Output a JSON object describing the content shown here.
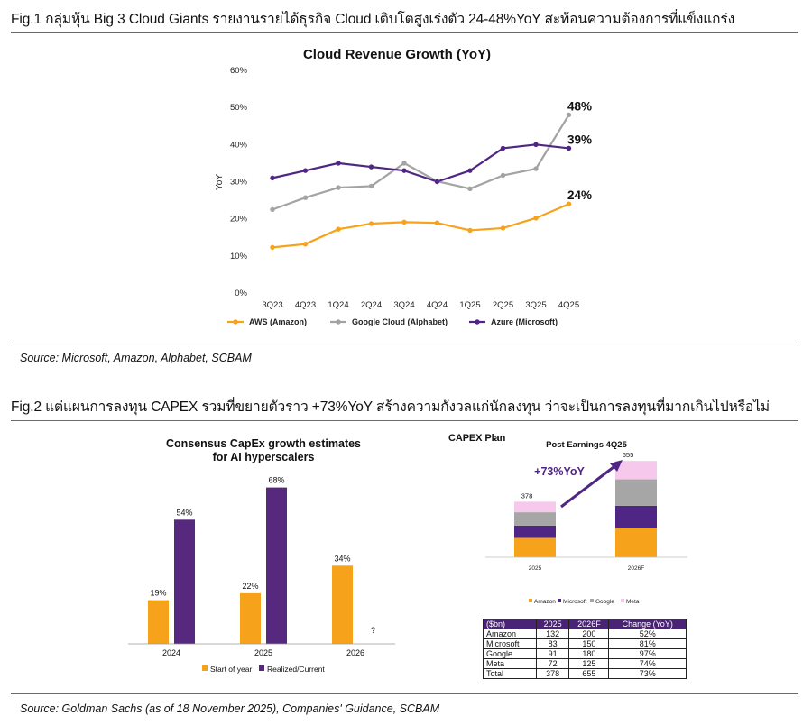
{
  "fig1": {
    "title": "Fig.1 กลุ่มหุ้น Big 3 Cloud Giants รายงานรายได้ธุรกิจ Cloud เติบโตสูงเร่งตัว 24-48%YoY สะท้อนความต้องการที่แข็งแกร่ง",
    "source": "Source: Microsoft, Amazon, Alphabet, SCBAM"
  },
  "fig2": {
    "title": "Fig.2 แต่แผนการลงทุน CAPEX รวมที่ขยายตัวราว +73%YoY สร้างความกังวลแก่นักลงทุน ว่าจะเป็นการลงทุนที่มากเกินไปหรือไม่",
    "source": "Source: Goldman Sachs (as of 18 November 2025), Companies' Guidance, SCBAM",
    "capex_plan_label": "CAPEX Plan"
  },
  "chart_data": [
    {
      "id": "cloud",
      "type": "line",
      "title": "Cloud Revenue Growth (YoY)",
      "xlabel": "",
      "ylabel": "YoY",
      "ylim": [
        0,
        60
      ],
      "yticks": [
        "0%",
        "10%",
        "20%",
        "30%",
        "40%",
        "50%",
        "60%"
      ],
      "categories": [
        "3Q23",
        "4Q23",
        "1Q24",
        "2Q24",
        "3Q24",
        "4Q24",
        "1Q25",
        "2Q25",
        "3Q25",
        "4Q25"
      ],
      "series": [
        {
          "name": "AWS (Amazon)",
          "color": "#f7a21b",
          "values": [
            12.3,
            13.2,
            17.2,
            18.7,
            19.1,
            18.9,
            16.9,
            17.5,
            20.2,
            24.0
          ],
          "end_label": "24%"
        },
        {
          "name": "Google Cloud (Alphabet)",
          "color": "#a3a3a3",
          "values": [
            22.5,
            25.7,
            28.4,
            28.8,
            35.0,
            30.1,
            28.1,
            31.7,
            33.5,
            48.0
          ],
          "end_label": "48%"
        },
        {
          "name": "Azure (Microsoft)",
          "color": "#4f2683",
          "values": [
            31.0,
            33.0,
            35.0,
            34.0,
            33.0,
            30.0,
            33.0,
            39.0,
            40.0,
            39.0
          ],
          "end_label": "39%"
        }
      ]
    },
    {
      "id": "consensus",
      "type": "bar",
      "title": [
        "Consensus CapEx growth estimates",
        "for AI hyperscalers"
      ],
      "categories": [
        "2024",
        "2025",
        "2026"
      ],
      "ylim": [
        0,
        80
      ],
      "series": [
        {
          "name": "Start of year",
          "color": "#f7a21b",
          "values": [
            19,
            22,
            34
          ],
          "labels": [
            "19%",
            "22%",
            "34%"
          ]
        },
        {
          "name": "Realized/Current",
          "color": "#56297e",
          "values": [
            54,
            68,
            null
          ],
          "labels": [
            "54%",
            "68%",
            "?"
          ]
        }
      ]
    },
    {
      "id": "capex",
      "type": "bar",
      "stacked": true,
      "title": "Post Earnings 4Q25",
      "categories": [
        "2025",
        "2026F"
      ],
      "totals": [
        "378",
        "655"
      ],
      "ylim": [
        0,
        700
      ],
      "growth_label": "+73%YoY",
      "series": [
        {
          "name": "Amazon",
          "color": "#f7a21b",
          "values": [
            132,
            200
          ]
        },
        {
          "name": "Microsoft",
          "color": "#4f2683",
          "values": [
            83,
            150
          ]
        },
        {
          "name": "Google",
          "color": "#a6a6a6",
          "values": [
            91,
            180
          ]
        },
        {
          "name": "Meta",
          "color": "#f5c8ec",
          "values": [
            72,
            125
          ]
        }
      ]
    },
    {
      "id": "capex_table",
      "type": "table",
      "columns": [
        "($bn)",
        "2025",
        "2026F",
        "Change (YoY)"
      ],
      "rows": [
        [
          "Amazon",
          "132",
          "200",
          "52%"
        ],
        [
          "Microsoft",
          "83",
          "150",
          "81%"
        ],
        [
          "Google",
          "91",
          "180",
          "97%"
        ],
        [
          "Meta",
          "72",
          "125",
          "74%"
        ],
        [
          "Total",
          "378",
          "655",
          "73%"
        ]
      ]
    }
  ]
}
